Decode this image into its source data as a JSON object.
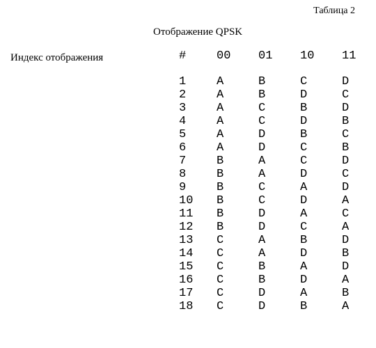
{
  "table_label": "Таблица 2",
  "caption": "Отображение QPSK",
  "row_header_label": "Индекс отображения",
  "columns": [
    "#",
    "00",
    "01",
    "10",
    "11"
  ],
  "rows": [
    [
      "1",
      "A",
      "B",
      "C",
      "D"
    ],
    [
      "2",
      "A",
      "B",
      "D",
      "C"
    ],
    [
      "3",
      "A",
      "C",
      "B",
      "D"
    ],
    [
      "4",
      "A",
      "C",
      "D",
      "B"
    ],
    [
      "5",
      "A",
      "D",
      "B",
      "C"
    ],
    [
      "6",
      "A",
      "D",
      "C",
      "B"
    ],
    [
      "7",
      "B",
      "A",
      "C",
      "D"
    ],
    [
      "8",
      "B",
      "A",
      "D",
      "C"
    ],
    [
      "9",
      "B",
      "C",
      "A",
      "D"
    ],
    [
      "10",
      "B",
      "C",
      "D",
      "A"
    ],
    [
      "11",
      "B",
      "D",
      "A",
      "C"
    ],
    [
      "12",
      "B",
      "D",
      "C",
      "A"
    ],
    [
      "13",
      "C",
      "A",
      "B",
      "D"
    ],
    [
      "14",
      "C",
      "A",
      "D",
      "B"
    ],
    [
      "15",
      "C",
      "B",
      "A",
      "D"
    ],
    [
      "16",
      "C",
      "B",
      "D",
      "A"
    ],
    [
      "17",
      "C",
      "D",
      "A",
      "B"
    ],
    [
      "18",
      "C",
      "D",
      "B",
      "A"
    ]
  ],
  "colors": {
    "background": "#ffffff",
    "text": "#000000"
  },
  "fonts": {
    "label_family": "Times New Roman, serif",
    "data_family": "Courier New, monospace",
    "label_size_pt": 14,
    "data_size_pt": 15
  }
}
